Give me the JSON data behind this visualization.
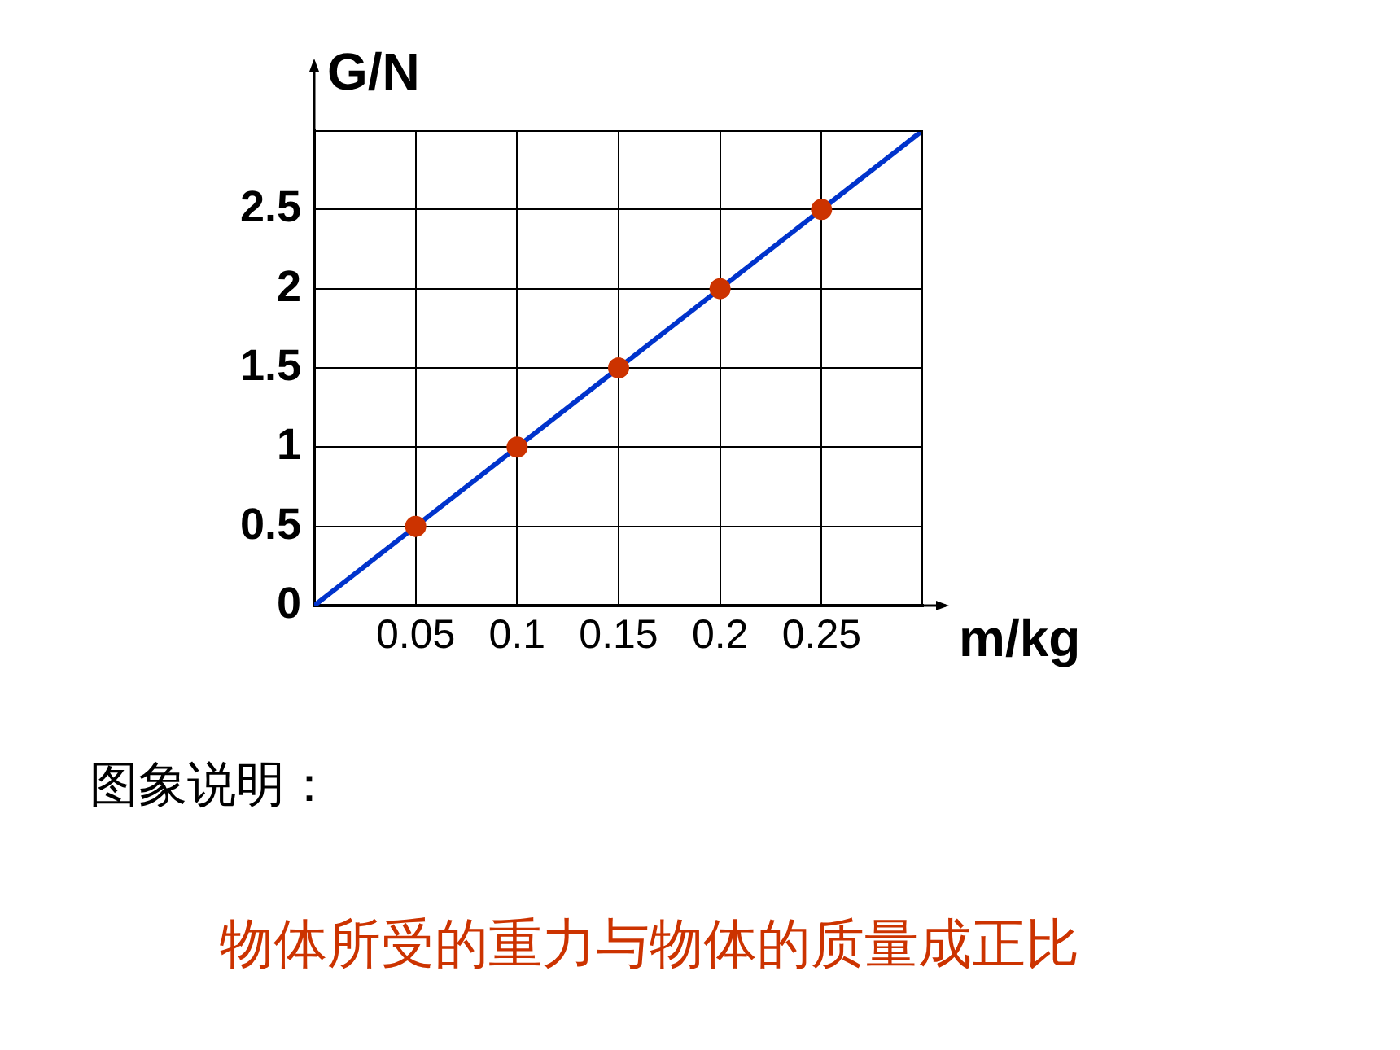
{
  "chart_data": {
    "type": "scatter",
    "xlabel": "m/kg",
    "ylabel": "G/N",
    "annotations": [
      "图象说明：",
      "物体所受的重力与物体的质量成正比"
    ],
    "xlim": [
      0,
      0.3
    ],
    "ylim": [
      0,
      3
    ],
    "xticks": [
      0.05,
      0.1,
      0.15,
      0.2,
      0.25
    ],
    "yticks": [
      0,
      0.5,
      1,
      1.5,
      2,
      2.5
    ],
    "grid": true,
    "legend": false,
    "series": [
      {
        "type": "line",
        "color": "#0033cc",
        "marker": "none",
        "x": [
          0,
          0.3
        ],
        "values": [
          0,
          3
        ]
      },
      {
        "color": "#cc3300",
        "marker": "circle",
        "x": [
          0.05,
          0.1,
          0.15,
          0.2,
          0.25
        ],
        "values": [
          0.5,
          1,
          1.5,
          2,
          2.5
        ]
      }
    ]
  }
}
